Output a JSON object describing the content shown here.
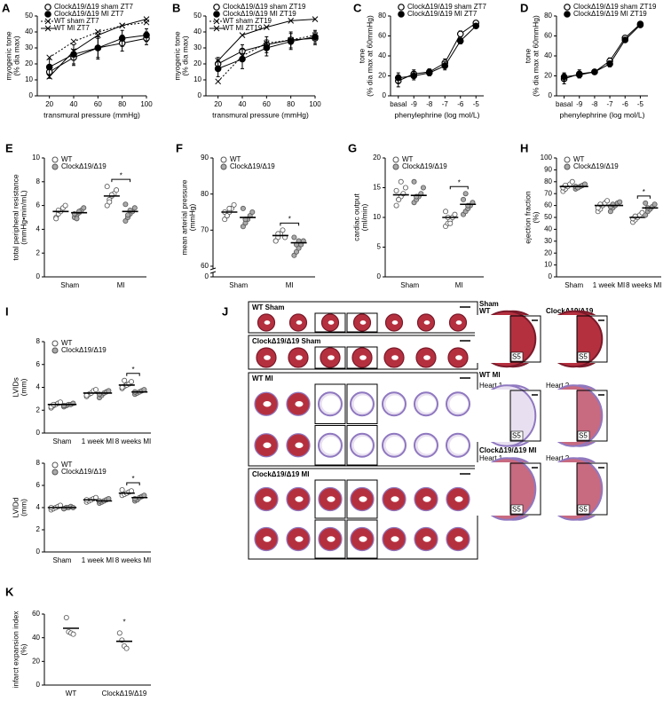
{
  "chart_data": [
    {
      "panel": "A",
      "type": "line",
      "xlabel": "transmural pressure (mmHg)",
      "ylabel": [
        "myogenic tone",
        "(% dia max)"
      ],
      "x": [
        20,
        40,
        60,
        80,
        100
      ],
      "xlim": [
        10,
        100
      ],
      "xticks": [
        20,
        40,
        60,
        80,
        100
      ],
      "ylim": [
        0,
        50
      ],
      "yticks": [
        0,
        10,
        20,
        30,
        40,
        50
      ],
      "series": [
        {
          "name": "ClockΔ19/Δ19 sham ZT7",
          "color": "#000000",
          "marker": "circle-open",
          "dash": false,
          "values": [
            15,
            24,
            30,
            33,
            36
          ],
          "errors": [
            4,
            5,
            6,
            5,
            4
          ]
        },
        {
          "name": "ClockΔ19/Δ19 MI ZT7",
          "color": "#000000",
          "marker": "circle-filled",
          "dash": false,
          "values": [
            18,
            26,
            30,
            36,
            38
          ],
          "errors": [
            5,
            6,
            7,
            5,
            4
          ]
        },
        {
          "name": "WT sham ZT7",
          "color": "#000000",
          "marker": "x",
          "dash": true,
          "values": [
            24,
            34,
            40,
            44,
            46
          ]
        },
        {
          "name": "WT MI ZT7",
          "color": "#000000",
          "marker": "x",
          "dash": false,
          "values": [
            12,
            28,
            38,
            44,
            48
          ]
        }
      ]
    },
    {
      "panel": "B",
      "type": "line",
      "xlabel": "transmural pressure (mmHg)",
      "ylabel": [
        "myogenic tone",
        "(% dia max)"
      ],
      "x": [
        20,
        40,
        60,
        80,
        100
      ],
      "xlim": [
        10,
        100
      ],
      "xticks": [
        20,
        40,
        60,
        80,
        100
      ],
      "ylim": [
        0,
        50
      ],
      "yticks": [
        0,
        10,
        20,
        30,
        40,
        50
      ],
      "series": [
        {
          "name": "ClockΔ19/Δ19 sham ZT19",
          "color": "#000000",
          "marker": "circle-open",
          "dash": false,
          "values": [
            20,
            28,
            32,
            35,
            36
          ],
          "errors": [
            4,
            4,
            5,
            5,
            4
          ]
        },
        {
          "name": "ClockΔ19/Δ19 MI ZT19",
          "color": "#000000",
          "marker": "circle-filled",
          "dash": false,
          "values": [
            17,
            23,
            30,
            34,
            37
          ],
          "errors": [
            5,
            6,
            5,
            5,
            4
          ]
        },
        {
          "name": "WT sham ZT19",
          "color": "#000000",
          "marker": "x",
          "dash": true,
          "values": [
            9,
            25,
            33,
            35,
            38
          ]
        },
        {
          "name": "WT MI ZT19",
          "color": "#000000",
          "marker": "x",
          "dash": false,
          "values": [
            22,
            38,
            43,
            47,
            48
          ]
        }
      ]
    },
    {
      "panel": "C",
      "type": "line",
      "xlabel": "phenylephrine (log mol/L)",
      "ylabel": [
        "tone",
        "(% dia max at 60mmHg)"
      ],
      "categories": [
        "basal",
        "-9",
        "-8",
        "-7",
        "-6",
        "-5"
      ],
      "ylim": [
        0,
        80
      ],
      "yticks": [
        0,
        20,
        40,
        60,
        80
      ],
      "series": [
        {
          "name": "ClockΔ19/Δ19 sham ZT7",
          "color": "#000000",
          "marker": "circle-open",
          "dash": false,
          "values": [
            15,
            22,
            24,
            33,
            62,
            73
          ],
          "errors": [
            6,
            4,
            3,
            4,
            3,
            2
          ]
        },
        {
          "name": "ClockΔ19/Δ19 MI ZT7",
          "color": "#000000",
          "marker": "circle-filled",
          "dash": false,
          "values": [
            18,
            20,
            23,
            30,
            55,
            70
          ],
          "errors": [
            5,
            4,
            3,
            4,
            3,
            2
          ]
        }
      ]
    },
    {
      "panel": "D",
      "type": "line",
      "xlabel": "phenylephrine (log mol/L)",
      "ylabel": [
        "tone",
        "(% dia max at 60mmHg)"
      ],
      "categories": [
        "basal",
        "-9",
        "-8",
        "-7",
        "-6",
        "-5"
      ],
      "ylim": [
        0,
        80
      ],
      "yticks": [
        0,
        20,
        40,
        60,
        80
      ],
      "series": [
        {
          "name": "ClockΔ19/Δ19 sham ZT19",
          "color": "#000000",
          "marker": "circle-open",
          "dash": false,
          "values": [
            17,
            22,
            24,
            35,
            58,
            72
          ],
          "errors": [
            5,
            4,
            2,
            3,
            2,
            2
          ]
        },
        {
          "name": "ClockΔ19/Δ19 MI ZT19",
          "color": "#000000",
          "marker": "circle-filled",
          "dash": false,
          "values": [
            19,
            21,
            24,
            32,
            56,
            71
          ],
          "errors": [
            4,
            3,
            2,
            3,
            2,
            2
          ]
        }
      ]
    },
    {
      "panel": "E",
      "type": "dot",
      "ylabel": [
        "total peripheral resistance",
        "(mmHg•min/mL)"
      ],
      "categories": [
        "Sham",
        "MI"
      ],
      "ylim": [
        0,
        10
      ],
      "yticks": [
        0,
        2,
        4,
        6,
        8,
        10
      ],
      "significance": [
        {
          "label": "*",
          "category": "MI"
        }
      ],
      "series": [
        {
          "name": "WT",
          "color": "#ffffff",
          "values": [
            5.5,
            6.8
          ],
          "points": [
            [
              5.0,
              5.3,
              5.5,
              5.8,
              6.0,
              4.9,
              5.6
            ],
            [
              6.0,
              6.5,
              6.8,
              7.0,
              7.3,
              7.6,
              6.3,
              6.9
            ]
          ]
        },
        {
          "name": "ClockΔ19/Δ19",
          "color": "#aaaaaa",
          "values": [
            5.4,
            5.5
          ],
          "points": [
            [
              5.0,
              5.2,
              5.4,
              5.6,
              5.8,
              5.3,
              4.9,
              5.5
            ],
            [
              4.7,
              5.0,
              5.3,
              5.5,
              5.8,
              6.1,
              5.2,
              5.6
            ]
          ]
        }
      ]
    },
    {
      "panel": "F",
      "type": "dot",
      "ylabel": [
        "mean arterial pressure",
        "(mmHg)"
      ],
      "categories": [
        "Sham",
        "MI"
      ],
      "ylim": [
        0,
        90
      ],
      "yticks": [
        0,
        60,
        70,
        80,
        90
      ],
      "axis_break": [
        0,
        60
      ],
      "significance": [
        {
          "label": "*",
          "category": "MI"
        }
      ],
      "series": [
        {
          "name": "WT",
          "color": "#ffffff",
          "values": [
            75,
            68.5
          ],
          "points": [
            [
              73,
              74,
              75,
              76,
              77,
              75,
              74,
              76
            ],
            [
              67,
              68,
              69,
              70,
              68,
              67,
              69
            ]
          ]
        },
        {
          "name": "ClockΔ19/Δ19",
          "color": "#aaaaaa",
          "values": [
            73.5,
            66.5
          ],
          "points": [
            [
              71,
              72,
              73,
              74,
              75,
              76,
              73
            ],
            [
              63,
              64,
              65,
              66,
              67,
              68,
              66,
              67
            ]
          ]
        }
      ]
    },
    {
      "panel": "G",
      "type": "dot",
      "ylabel": [
        "cardiac output",
        "(ml/min)"
      ],
      "categories": [
        "Sham",
        "MI"
      ],
      "ylim": [
        0,
        20
      ],
      "yticks": [
        0,
        5,
        10,
        15,
        20
      ],
      "significance": [
        {
          "label": "*",
          "category": "MI"
        }
      ],
      "series": [
        {
          "name": "WT",
          "color": "#ffffff",
          "values": [
            13.8,
            10
          ],
          "points": [
            [
              12,
              13,
              13.5,
              14,
              15,
              14.5,
              13,
              16
            ],
            [
              8.5,
              9,
              9.5,
              10,
              10.5,
              11,
              10,
              9
            ]
          ]
        },
        {
          "name": "ClockΔ19/Δ19",
          "color": "#aaaaaa",
          "values": [
            13.7,
            12.2
          ],
          "points": [
            [
              12.5,
              13,
              13.5,
              14,
              15,
              16,
              13.5
            ],
            [
              10.5,
              11,
              11.5,
              12,
              12.5,
              13,
              14,
              12
            ]
          ]
        }
      ]
    },
    {
      "panel": "H",
      "type": "dot",
      "ylabel": [
        "ejection fraction",
        "(%)"
      ],
      "categories": [
        "Sham",
        "1 week MI",
        "8 weeks MI"
      ],
      "ylim": [
        0,
        100
      ],
      "yticks": [
        0,
        10,
        20,
        30,
        40,
        50,
        60,
        70,
        80,
        90,
        100
      ],
      "significance": [
        {
          "label": "*",
          "category": "8 weeks MI"
        }
      ],
      "series": [
        {
          "name": "WT",
          "color": "#ffffff",
          "values": [
            76,
            60,
            50
          ],
          "points": [
            [
              72,
              74,
              76,
              78,
              80,
              75,
              77
            ],
            [
              55,
              57,
              60,
              62,
              64,
              58,
              61
            ],
            [
              46,
              48,
              50,
              52,
              54,
              49,
              51
            ]
          ]
        },
        {
          "name": "ClockΔ19/Δ19",
          "color": "#aaaaaa",
          "values": [
            76,
            60,
            58
          ],
          "points": [
            [
              74,
              75,
              76,
              77,
              78,
              76,
              75
            ],
            [
              55,
              58,
              60,
              62,
              63,
              59,
              61
            ],
            [
              52,
              55,
              57,
              59,
              61,
              62,
              58
            ]
          ]
        }
      ]
    },
    {
      "panel": "I",
      "type": "dot",
      "ylabel": [
        "LVIDs",
        "(mm)"
      ],
      "categories": [
        "Sham",
        "1 week MI",
        "8 weeks MI"
      ],
      "ylim": [
        0,
        8
      ],
      "yticks": [
        0,
        2,
        4,
        6,
        8
      ],
      "significance": [
        {
          "label": "*",
          "category": "8 weeks MI"
        }
      ],
      "series": [
        {
          "name": "WT",
          "color": "#ffffff",
          "values": [
            2.5,
            3.5,
            4.2
          ],
          "points": [
            [
              2.2,
              2.4,
              2.5,
              2.6,
              2.7,
              2.3,
              2.5
            ],
            [
              3.2,
              3.4,
              3.5,
              3.7,
              3.8,
              3.3
            ],
            [
              3.9,
              4.1,
              4.2,
              4.3,
              4.5,
              4.0,
              4.6
            ]
          ]
        },
        {
          "name": "ClockΔ19/Δ19",
          "color": "#aaaaaa",
          "values": [
            2.5,
            3.5,
            3.6
          ],
          "points": [
            [
              2.3,
              2.4,
              2.5,
              2.5,
              2.6,
              2.4
            ],
            [
              3.1,
              3.3,
              3.5,
              3.6,
              3.7,
              3.4
            ],
            [
              3.4,
              3.5,
              3.6,
              3.7,
              3.8,
              3.6
            ]
          ]
        }
      ]
    },
    {
      "type": "dot",
      "ylabel": [
        "LVIDd",
        "(mm)"
      ],
      "categories": [
        "Sham",
        "1 week MI",
        "8 weeks MI"
      ],
      "ylim": [
        0,
        8
      ],
      "yticks": [
        0,
        2,
        4,
        6,
        8
      ],
      "significance": [
        {
          "label": "*",
          "category": "8 weeks MI"
        }
      ],
      "series": [
        {
          "name": "WT",
          "color": "#ffffff",
          "values": [
            4.0,
            4.7,
            5.3
          ],
          "points": [
            [
              3.8,
              3.9,
              4.0,
              4.1,
              4.2,
              4.0
            ],
            [
              4.5,
              4.6,
              4.7,
              4.8,
              4.9,
              4.7
            ],
            [
              5.1,
              5.2,
              5.3,
              5.4,
              5.5,
              5.6
            ]
          ]
        },
        {
          "name": "ClockΔ19/Δ19",
          "color": "#aaaaaa",
          "values": [
            4.0,
            4.6,
            4.9
          ],
          "points": [
            [
              3.9,
              4.0,
              4.0,
              4.1,
              4.0,
              3.9
            ],
            [
              4.4,
              4.5,
              4.6,
              4.7,
              4.8,
              4.6
            ],
            [
              4.6,
              4.7,
              4.9,
              5.0,
              5.1,
              4.8
            ]
          ]
        }
      ]
    },
    {
      "panel": "K",
      "type": "dot",
      "ylabel": [
        "infarct expansion index",
        "(%)"
      ],
      "categories": [
        "WT",
        "ClockΔ19/Δ19"
      ],
      "ylim": [
        0,
        60
      ],
      "yticks": [
        0,
        20,
        40,
        60
      ],
      "significance": [
        {
          "label": "*",
          "category": "ClockΔ19/Δ19"
        }
      ],
      "series": [
        {
          "color": "#ffffff",
          "values": [
            48,
            37
          ],
          "points": [
            [
              57,
              45,
              44,
              43
            ],
            [
              44,
              38,
              33,
              31
            ]
          ]
        }
      ]
    }
  ],
  "panel_j": {
    "label": "J",
    "rows": [
      {
        "title": "WT Sham"
      },
      {
        "title": "ClockΔ19/Δ19 Sham"
      },
      {
        "title": "WT MI"
      },
      {
        "title": "ClockΔ19/Δ19 MI"
      }
    ],
    "insets": [
      {
        "title": "Sham",
        "columns": [
          "WT",
          "ClockΔ19/Δ19"
        ]
      },
      {
        "title": "WT MI",
        "columns": [
          "Heart 1",
          "Heart 2"
        ]
      },
      {
        "title": "ClockΔ19/Δ19 MI",
        "columns": [
          "Heart 1",
          "Heart 2"
        ]
      }
    ],
    "section_labels": [
      "S4",
      "S5"
    ]
  }
}
